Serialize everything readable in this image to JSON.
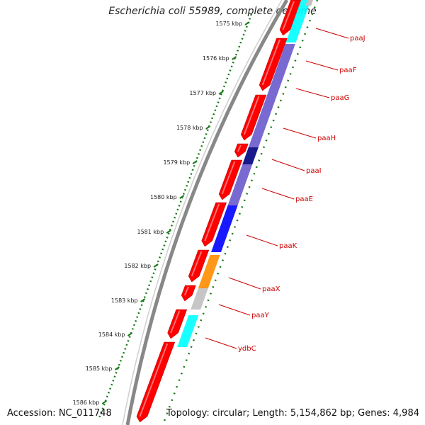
{
  "title": "Escherichia coli 55989, complete genome",
  "accession": "Accession: NC_011748",
  "topology": "Topology: circular; Length: 5,154,862 bp; Genes: 4,984",
  "colors": {
    "backbone": "#888888",
    "cds": "#ff0000",
    "ruler": "#1a7a1a",
    "label": "#cc0000"
  },
  "ruler": {
    "labels": [
      "1575 kbp",
      "1576 kbp",
      "1577 kbp",
      "1578 kbp",
      "1579 kbp",
      "1580 kbp",
      "1581 kbp",
      "1582 kbp",
      "1583 kbp",
      "1584 kbp",
      "1585 kbp",
      "1586 kbp"
    ]
  },
  "genes": [
    {
      "name": "paaJ",
      "color": "#00ffff"
    },
    {
      "name": "paaF",
      "color": "#6a5acd"
    },
    {
      "name": "paaG",
      "color": "#6a5acd"
    },
    {
      "name": "paaH",
      "color": "#6a5acd"
    },
    {
      "name": "paaI",
      "color": "#000080"
    },
    {
      "name": "paaE",
      "color": "#6a5acd"
    },
    {
      "name": "paaK",
      "color": "#0000ff"
    },
    {
      "name": "paaX",
      "color": "#ff8c00"
    },
    {
      "name": "paaY",
      "color": "#c0c0c0"
    },
    {
      "name": "ydbC",
      "color": "#00ffff"
    }
  ]
}
